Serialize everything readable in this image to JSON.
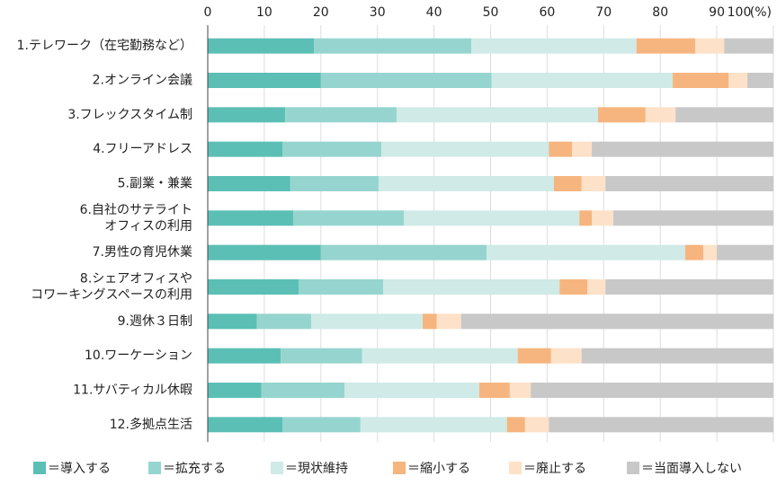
{
  "chart_data": {
    "type": "stacked-barh",
    "categories": [
      "1.テレワーク（在宅勤務など）",
      "2.オンライン会議",
      "3.フレックスタイム制",
      "4.フリーアドレス",
      "5.副業・兼業",
      "6.自社のサテライト\nオフィスの利用",
      "7.男性の育児休業",
      "8.シェアオフィスや\nコワーキングスペースの利用",
      "9.週休３日制",
      "10.ワーケーション",
      "11.サバティカル休暇",
      "12.多拠点生活"
    ],
    "series": [
      {
        "name": "＝導入する",
        "color": "#5bbfb5",
        "values": [
          18.8,
          20.0,
          13.7,
          13.2,
          14.6,
          15.1,
          20.0,
          16.1,
          8.7,
          12.9,
          9.5,
          13.2
        ]
      },
      {
        "name": "＝拡充する",
        "color": "#96d5cf",
        "values": [
          27.8,
          30.2,
          19.7,
          17.5,
          15.6,
          19.6,
          29.3,
          14.9,
          9.6,
          14.4,
          14.7,
          13.8
        ]
      },
      {
        "name": "＝現状維持",
        "color": "#cfeae7",
        "values": [
          29.2,
          32.0,
          35.6,
          29.6,
          31.0,
          31.0,
          35.1,
          31.2,
          19.7,
          27.5,
          23.8,
          25.9
        ]
      },
      {
        "name": "＝縮小する",
        "color": "#f6b57e",
        "values": [
          10.4,
          9.9,
          8.4,
          4.1,
          4.9,
          2.2,
          3.2,
          4.9,
          2.5,
          5.9,
          5.4,
          3.2
        ]
      },
      {
        "name": "＝廃止する",
        "color": "#fde1c8",
        "values": [
          5.1,
          3.3,
          5.3,
          3.5,
          4.2,
          3.8,
          2.4,
          3.2,
          4.3,
          5.4,
          3.7,
          4.2
        ]
      },
      {
        "name": "＝当面導入しない",
        "color": "#c8c8c8",
        "values": [
          8.7,
          4.6,
          17.3,
          32.1,
          29.7,
          28.3,
          10.0,
          29.7,
          55.2,
          33.9,
          42.9,
          39.7
        ]
      }
    ],
    "xlim": [
      0,
      100
    ],
    "xticks": [
      0,
      10,
      20,
      30,
      40,
      50,
      60,
      70,
      80,
      90,
      100
    ],
    "x_unit": "(%)",
    "grid": true
  }
}
